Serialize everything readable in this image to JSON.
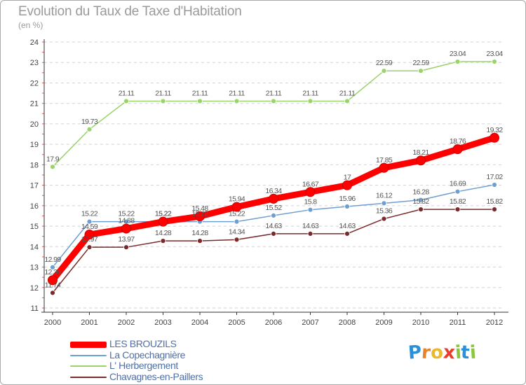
{
  "header": {
    "title": "Evolution du Taux de Taxe d'Habitation",
    "subtitle": "(en %)"
  },
  "logo": {
    "letters": [
      "P",
      "r",
      "o",
      "x",
      "i",
      "t",
      "i"
    ],
    "colors": [
      "#2d8fd5",
      "#e8822c",
      "#e8b92c",
      "#e83c2c",
      "#8cc63f",
      "#2d8fd5",
      "#8cc63f"
    ]
  },
  "chart_data": {
    "type": "line",
    "title": "Evolution du Taux de Taxe d'Habitation",
    "subtitle": "(en %)",
    "xlabel": "",
    "ylabel": "",
    "x": [
      "2000",
      "2001",
      "2002",
      "2003",
      "2004",
      "2005",
      "2006",
      "2007",
      "2008",
      "2009",
      "2010",
      "2011",
      "2012"
    ],
    "ylim": [
      11,
      24
    ],
    "yticks": [
      "11",
      "12",
      "13",
      "14",
      "15",
      "16",
      "17",
      "18",
      "19",
      "20",
      "21",
      "22",
      "23",
      "24"
    ],
    "grid": "horizontal",
    "legend_position": "bottom-left",
    "series": [
      {
        "name": "LES BROUZILS",
        "color": "#ff0000",
        "values": [
          12.36,
          14.59,
          14.88,
          15.22,
          15.48,
          15.94,
          16.34,
          16.67,
          17,
          17.85,
          18.21,
          18.76,
          19.32
        ],
        "labels": [
          "12.36",
          "14.59",
          "14.88",
          "15.22",
          "15.48",
          "15.94",
          "16.34",
          "16.67",
          "17",
          "17.85",
          "18.21",
          "18.76",
          "19.32"
        ]
      },
      {
        "name": "La Copechagnière",
        "color": "#6f9fd0",
        "values": [
          12.99,
          15.22,
          15.22,
          15.22,
          15.22,
          15.22,
          15.52,
          15.8,
          15.96,
          16.12,
          16.28,
          16.69,
          17.02
        ],
        "labels": [
          "12.99",
          "15.22",
          "15.22",
          "15.22",
          "15.22",
          "15.22",
          "15.52",
          "15.8",
          "15.96",
          "16.12",
          "16.28",
          "16.69",
          "17.02"
        ]
      },
      {
        "name": "L' Herbergement",
        "color": "#9ad36a",
        "values": [
          17.9,
          19.73,
          21.11,
          21.11,
          21.11,
          21.11,
          21.11,
          21.11,
          21.11,
          22.59,
          22.59,
          23.04,
          23.04
        ],
        "labels": [
          "17.9",
          "19.73",
          "21.11",
          "21.11",
          "21.11",
          "21.11",
          "21.11",
          "21.11",
          "21.11",
          "22.59",
          "22.59",
          "23.04",
          "23.04"
        ]
      },
      {
        "name": "Chavagnes-en-Paillers",
        "color": "#7a2a2a",
        "values": [
          11.74,
          13.97,
          13.97,
          14.28,
          14.28,
          14.34,
          14.63,
          14.63,
          14.63,
          15.36,
          15.82,
          15.82,
          15.82
        ],
        "labels": [
          "11.74",
          "13.97",
          "13.97",
          "14.28",
          "14.28",
          "14.34",
          "14.63",
          "14.63",
          "14.63",
          "15.36",
          "15.82",
          "15.82",
          "15.82"
        ]
      }
    ]
  }
}
